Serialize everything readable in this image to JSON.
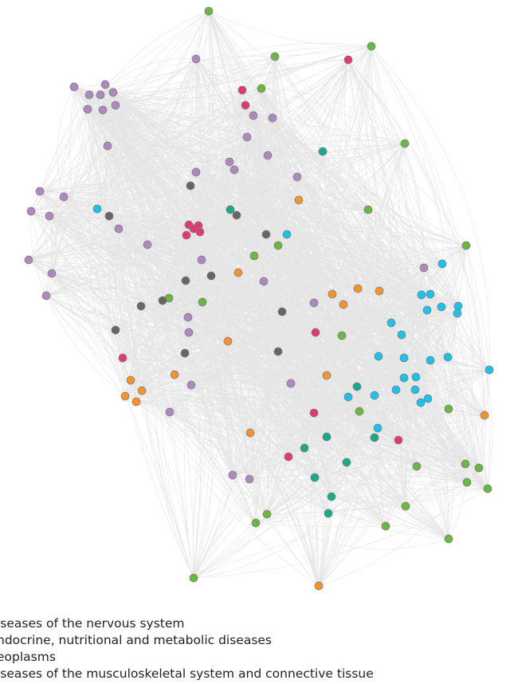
{
  "category_colors": {
    "green": "#6ab744",
    "purple": "#b088c0",
    "pink": "#e23a6e",
    "teal": "#1aa98a",
    "gray": "#6b6465",
    "orange": "#f59331",
    "blue": "#1ec0ec"
  },
  "edge_color": "#d0d0d0",
  "legend": {
    "items": [
      {
        "label": "iseases of the nervous system"
      },
      {
        "label": "ndocrine, nutritional and metabolic diseases"
      },
      {
        "label": "eoplasms"
      },
      {
        "label": "iseases of the musculoskeletal system and connective tissue"
      }
    ]
  }
}
